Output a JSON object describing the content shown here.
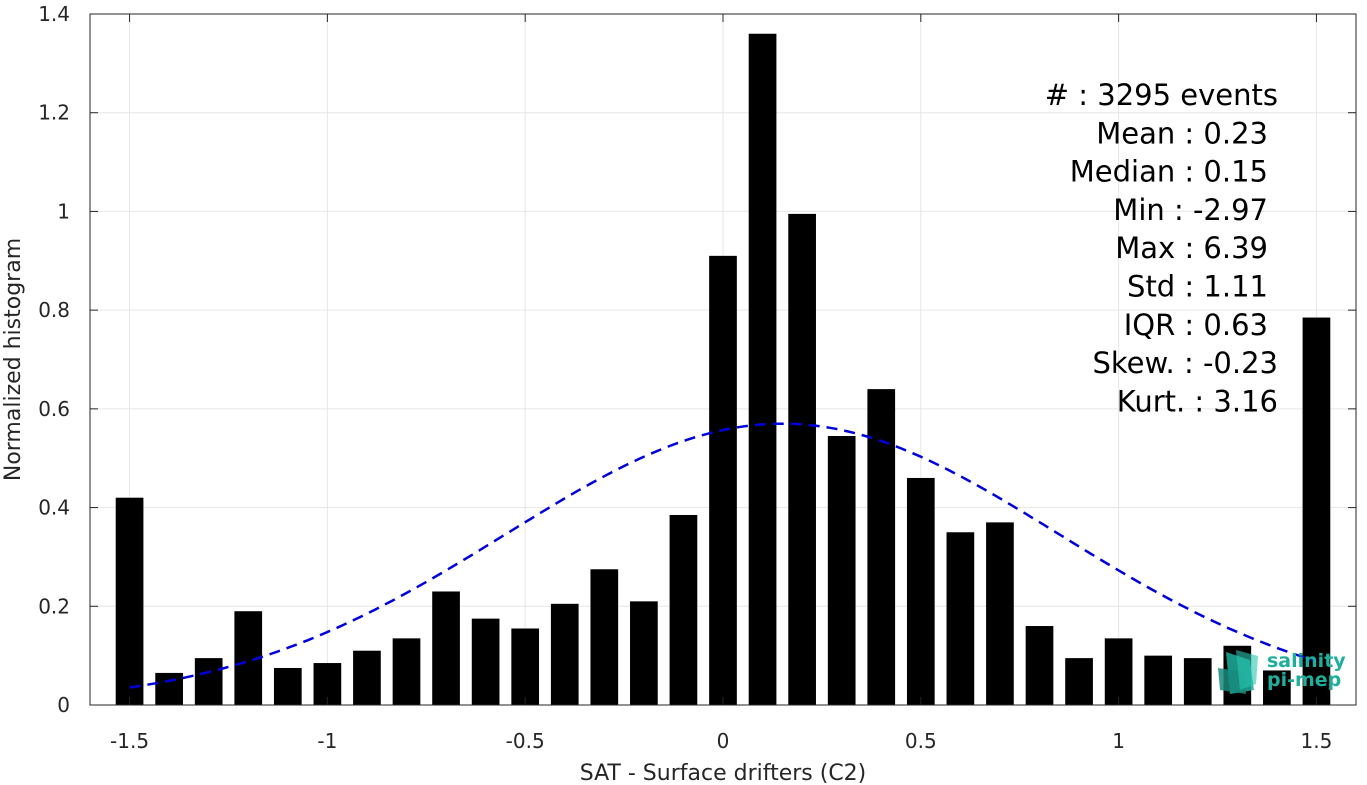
{
  "chart_data": {
    "type": "bar",
    "xlabel": "SAT - Surface drifters (C2)",
    "ylabel": "Normalized histogram",
    "xlim": [
      -1.6,
      1.6
    ],
    "ylim": [
      0,
      1.4
    ],
    "xticks": [
      -1.5,
      -1,
      -0.5,
      0,
      0.5,
      1,
      1.5
    ],
    "xtick_labels": [
      "-1.5",
      "-1",
      "-0.5",
      "0",
      "0.5",
      "1",
      "1.5"
    ],
    "yticks": [
      0,
      0.2,
      0.4,
      0.6,
      0.8,
      1.0,
      1.2,
      1.4
    ],
    "ytick_labels": [
      "0",
      "0.2",
      "0.4",
      "0.6",
      "0.8",
      "1",
      "1.2",
      "1.4"
    ],
    "grid": true,
    "bar_width": 0.07,
    "bar_color": "#000000",
    "x": [
      -1.5,
      -1.4,
      -1.3,
      -1.2,
      -1.1,
      -1.0,
      -0.9,
      -0.8,
      -0.7,
      -0.6,
      -0.5,
      -0.4,
      -0.3,
      -0.2,
      -0.1,
      0.0,
      0.1,
      0.2,
      0.3,
      0.4,
      0.5,
      0.6,
      0.7,
      0.8,
      0.9,
      1.0,
      1.1,
      1.2,
      1.3,
      1.4,
      1.5
    ],
    "values": [
      0.42,
      0.065,
      0.095,
      0.19,
      0.075,
      0.085,
      0.11,
      0.135,
      0.23,
      0.175,
      0.155,
      0.205,
      0.275,
      0.21,
      0.385,
      0.91,
      1.36,
      0.995,
      0.545,
      0.64,
      0.46,
      0.35,
      0.37,
      0.16,
      0.095,
      0.135,
      0.1,
      0.095,
      0.12,
      0.07,
      0.785
    ],
    "fit_curve": {
      "type": "gaussian",
      "mean": 0.15,
      "std": 0.7,
      "peak": 0.57,
      "x_range": [
        -1.5,
        1.5
      ],
      "color": "#0000dd",
      "style": "dashed"
    },
    "annotations": [
      {
        "label": "#  : 3295 events"
      },
      {
        "label": "Mean : 0.23"
      },
      {
        "label": "Median : 0.15"
      },
      {
        "label": "Min : -2.97"
      },
      {
        "label": "Max : 6.39"
      },
      {
        "label": "Std : 1.11"
      },
      {
        "label": "IQR : 0.63"
      },
      {
        "label": "Skew. : -0.23"
      },
      {
        "label": "Kurt. : 3.16"
      }
    ]
  },
  "logo": {
    "line1": "salinity",
    "line2": "pi-mep",
    "color": "#1fae9c"
  }
}
